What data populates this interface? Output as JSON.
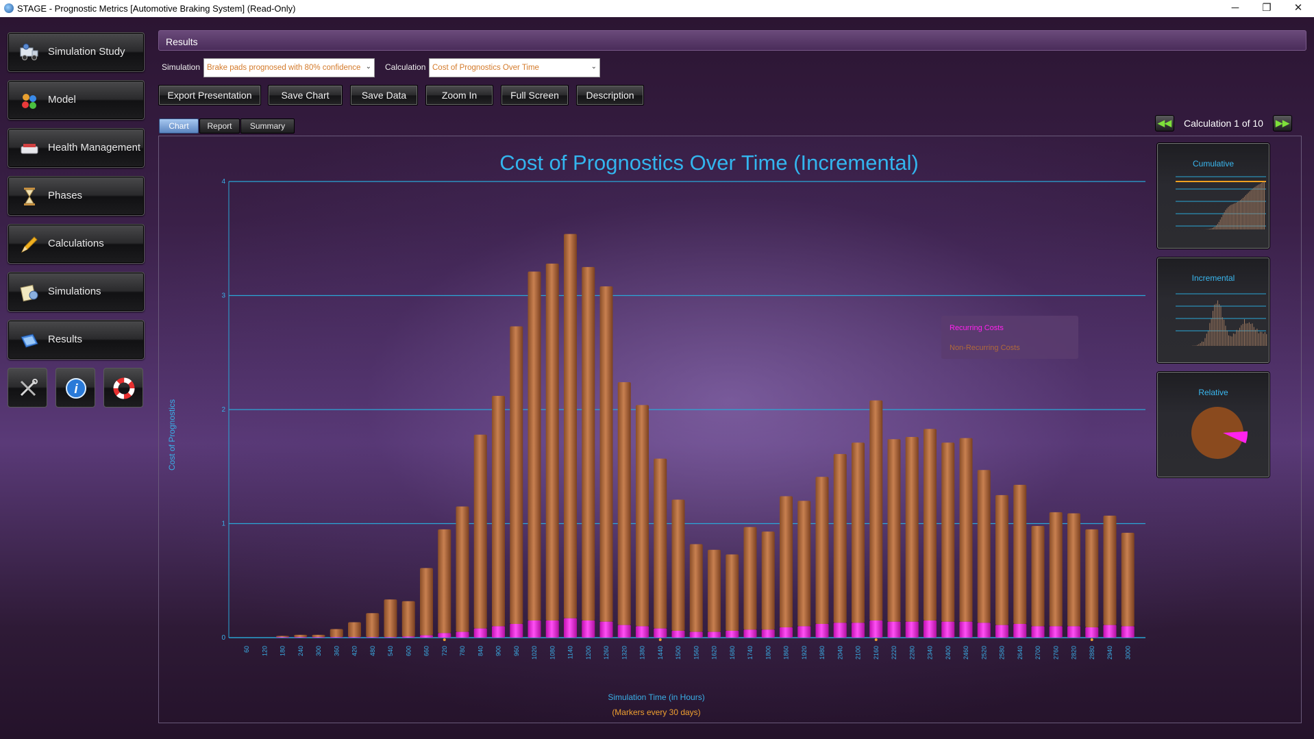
{
  "window": {
    "title": "STAGE - Prognostic Metrics [Automotive Braking System] (Read-Only)",
    "minimize": "─",
    "maximize": "❐",
    "close": "✕"
  },
  "sidebar": {
    "items": [
      {
        "label": "Simulation Study",
        "icon": "truck-gear-icon"
      },
      {
        "label": "Model",
        "icon": "molecule-icon"
      },
      {
        "label": "Health Management",
        "icon": "scale-icon"
      },
      {
        "label": "Phases",
        "icon": "hourglass-icon"
      },
      {
        "label": "Calculations",
        "icon": "pencil-icon"
      },
      {
        "label": "Simulations",
        "icon": "notepad-gear-icon"
      },
      {
        "label": "Results",
        "icon": "chart-book-icon"
      }
    ],
    "tools": [
      {
        "icon": "wrench-screwdriver-icon"
      },
      {
        "icon": "info-icon"
      },
      {
        "icon": "lifebuoy-icon"
      }
    ]
  },
  "results": {
    "header": "Results",
    "simulation_label": "Simulation",
    "simulation_value": "Brake pads prognosed with 80% confidence",
    "calculation_label": "Calculation",
    "calculation_value": "Cost of Prognostics Over Time",
    "buttons": [
      "Export Presentation",
      "Save Chart",
      "Save Data",
      "Zoom In",
      "Full Screen",
      "Description"
    ],
    "tabs": [
      "Chart",
      "Report",
      "Summary"
    ],
    "active_tab": "Chart",
    "calc_counter": "Calculation 1 of 10",
    "prev": "◀◀",
    "next": "▶▶"
  },
  "thumbnails": [
    "Cumulative",
    "Incremental",
    "Relative"
  ],
  "colors": {
    "title": "#33b5ee",
    "recurring": "#ff22ee",
    "non_recurring": "#b06a3a",
    "grid": "#2aa8d8",
    "axis_text": "#3ab0e8",
    "marker_caption": "#f0a030"
  },
  "chart_data": {
    "type": "bar",
    "stacked": true,
    "title": "Cost of Prognostics Over Time (Incremental)",
    "xlabel": "Simulation Time (in Hours)",
    "xlabel_note": "(Markers every 30 days)",
    "ylabel": "Cost of Prognostics",
    "ylim": [
      0,
      4
    ],
    "yticks": [
      0,
      1,
      2,
      3,
      4
    ],
    "grid": true,
    "legend_position": "top-right",
    "categories": [
      "60",
      "120",
      "180",
      "240",
      "300",
      "360",
      "420",
      "480",
      "540",
      "600",
      "660",
      "720",
      "780",
      "840",
      "900",
      "960",
      "1020",
      "1080",
      "1140",
      "1200",
      "1260",
      "1320",
      "1380",
      "1440",
      "1500",
      "1560",
      "1620",
      "1680",
      "1740",
      "1800",
      "1860",
      "1920",
      "1980",
      "2040",
      "2100",
      "2160",
      "2220",
      "2280",
      "2340",
      "2400",
      "2460",
      "2520",
      "2580",
      "2640",
      "2700",
      "2760",
      "2820",
      "2880",
      "2940",
      "3000"
    ],
    "series": [
      {
        "name": "Recurring Costs",
        "values": [
          0,
          0,
          0.005,
          0.005,
          0.005,
          0.005,
          0.005,
          0.005,
          0.005,
          0.01,
          0.02,
          0.04,
          0.05,
          0.08,
          0.1,
          0.12,
          0.15,
          0.15,
          0.17,
          0.15,
          0.14,
          0.11,
          0.1,
          0.08,
          0.06,
          0.05,
          0.05,
          0.06,
          0.07,
          0.07,
          0.09,
          0.1,
          0.12,
          0.13,
          0.13,
          0.15,
          0.14,
          0.14,
          0.15,
          0.14,
          0.14,
          0.13,
          0.11,
          0.12,
          0.1,
          0.1,
          0.1,
          0.09,
          0.11,
          0.1
        ]
      },
      {
        "name": "Non-Recurring Costs",
        "values": [
          0,
          0,
          0.01,
          0.02,
          0.02,
          0.07,
          0.13,
          0.21,
          0.33,
          0.31,
          0.59,
          0.91,
          1.1,
          1.7,
          2.02,
          2.61,
          3.06,
          3.13,
          3.37,
          3.1,
          2.94,
          2.13,
          1.94,
          1.49,
          1.15,
          0.77,
          0.72,
          0.67,
          0.9,
          0.86,
          1.15,
          1.1,
          1.29,
          1.48,
          1.58,
          1.93,
          1.6,
          1.62,
          1.68,
          1.57,
          1.61,
          1.34,
          1.14,
          1.22,
          0.88,
          1.0,
          0.99,
          0.86,
          0.96,
          0.82
        ]
      }
    ],
    "markers_at": [
      "720",
      "1440",
      "2160",
      "2880"
    ]
  }
}
